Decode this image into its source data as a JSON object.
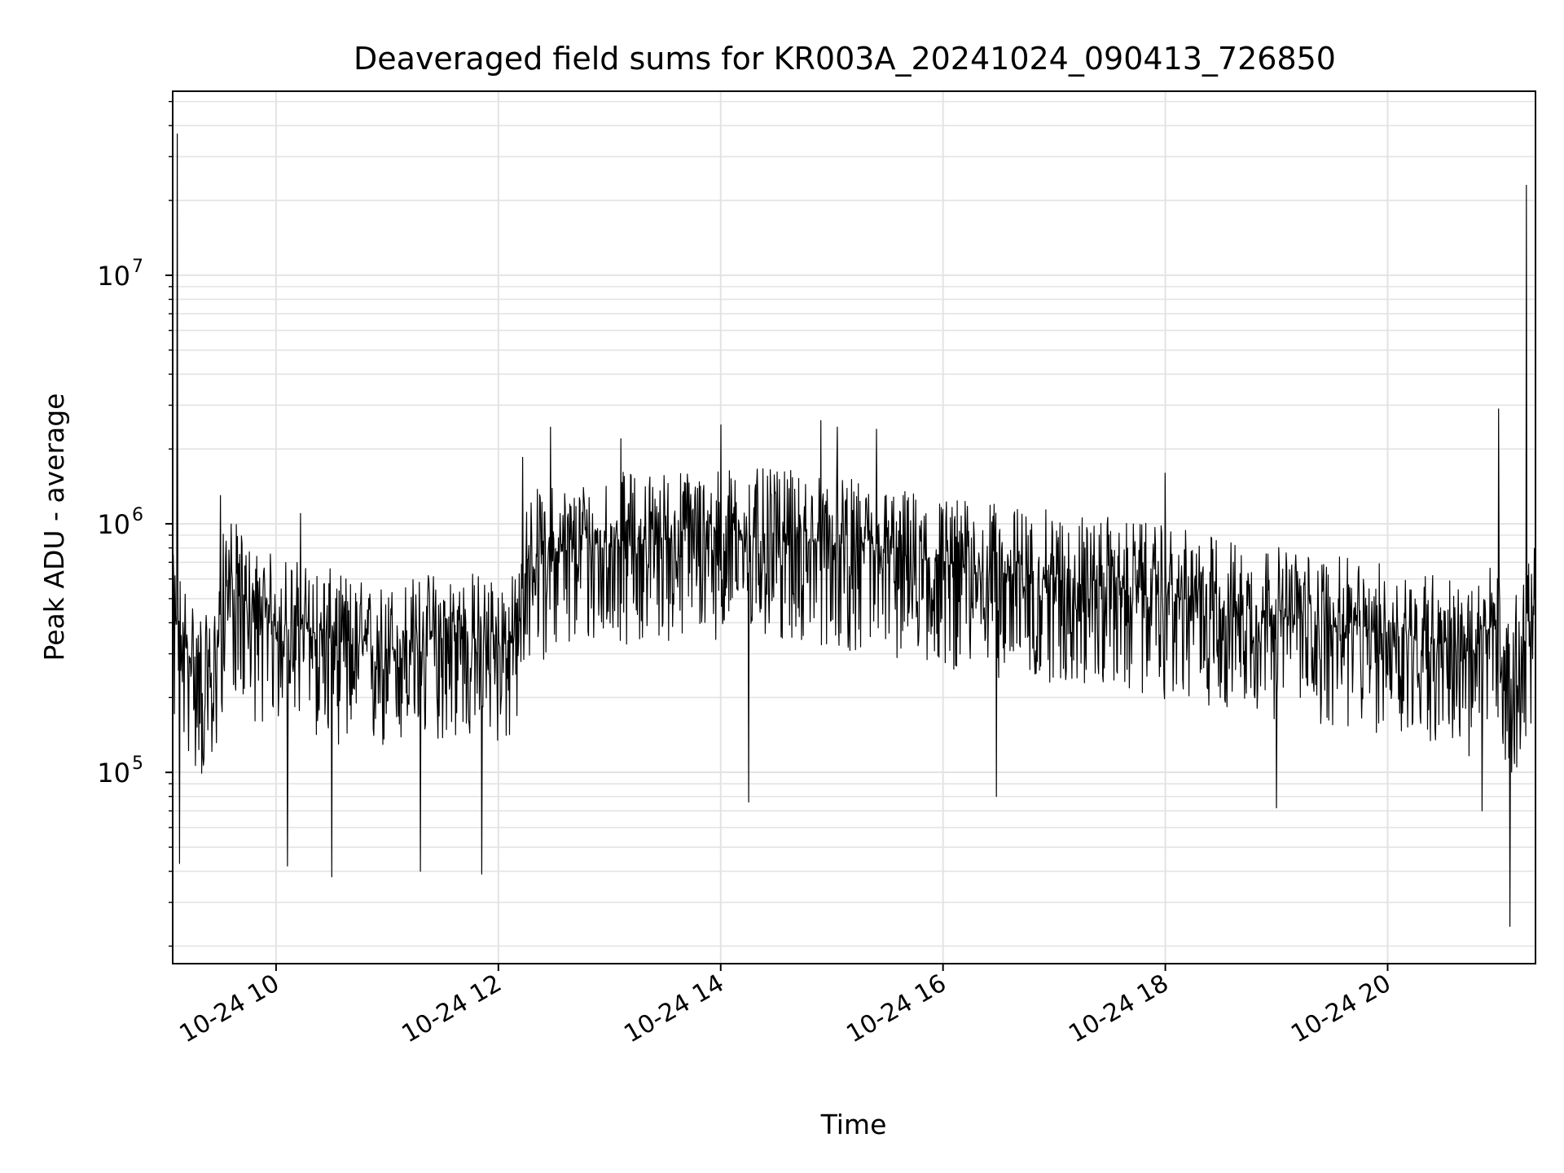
{
  "chart_data": {
    "type": "line",
    "title": "Deaveraged field sums for KR003A_20241024_090413_726850",
    "xlabel": "Time",
    "ylabel": "Peak ADU - average",
    "yscale": "log",
    "ylim": [
      17000,
      55000000
    ],
    "xlim_hours": [
      9.07,
      21.33
    ],
    "grid": true,
    "x_ticks": [
      {
        "hour": 10,
        "label": "10-24 10"
      },
      {
        "hour": 12,
        "label": "10-24 12"
      },
      {
        "hour": 14,
        "label": "10-24 14"
      },
      {
        "hour": 16,
        "label": "10-24 16"
      },
      {
        "hour": 18,
        "label": "10-24 18"
      },
      {
        "hour": 20,
        "label": "10-24 20"
      }
    ],
    "y_ticks": [
      {
        "value": 100000,
        "base": "10",
        "exp": "5"
      },
      {
        "value": 1000000,
        "base": "10",
        "exp": "6"
      },
      {
        "value": 10000000,
        "base": "10",
        "exp": "7"
      }
    ],
    "series": [
      {
        "name": "deaveraged field sum",
        "color": "#000000",
        "baseline": [
          [
            9.07,
            400000
          ],
          [
            9.3,
            250000
          ],
          [
            9.42,
            210000
          ],
          [
            9.55,
            600000
          ],
          [
            9.8,
            420000
          ],
          [
            10.3,
            370000
          ],
          [
            10.9,
            300000
          ],
          [
            11.5,
            350000
          ],
          [
            12.18,
            330000
          ],
          [
            12.25,
            720000
          ],
          [
            13.0,
            850000
          ],
          [
            14.0,
            900000
          ],
          [
            14.8,
            850000
          ],
          [
            15.5,
            750000
          ],
          [
            16.5,
            630000
          ],
          [
            17.5,
            560000
          ],
          [
            18.5,
            470000
          ],
          [
            19.5,
            390000
          ],
          [
            20.5,
            340000
          ],
          [
            20.75,
            280000
          ],
          [
            20.95,
            400000
          ],
          [
            21.1,
            230000
          ],
          [
            21.33,
            450000
          ]
        ],
        "noise_decades": {
          "up": 0.28,
          "down": 0.42
        },
        "spikes": [
          [
            9.11,
            37000000
          ],
          [
            9.13,
            43000
          ],
          [
            9.5,
            1300000
          ],
          [
            10.1,
            42000
          ],
          [
            10.22,
            1100000
          ],
          [
            10.5,
            38000
          ],
          [
            11.3,
            40000
          ],
          [
            11.85,
            39000
          ],
          [
            12.22,
            1850000
          ],
          [
            12.47,
            2450000
          ],
          [
            13.1,
            2200000
          ],
          [
            14.0,
            2500000
          ],
          [
            14.25,
            76000
          ],
          [
            14.9,
            2600000
          ],
          [
            15.05,
            2450000
          ],
          [
            15.4,
            2400000
          ],
          [
            16.48,
            80000
          ],
          [
            18.0,
            1600000
          ],
          [
            19.0,
            72000
          ],
          [
            20.85,
            70000
          ],
          [
            21.0,
            2900000
          ],
          [
            21.1,
            24000
          ],
          [
            21.25,
            23000000
          ]
        ],
        "n_points": 2400
      }
    ]
  }
}
